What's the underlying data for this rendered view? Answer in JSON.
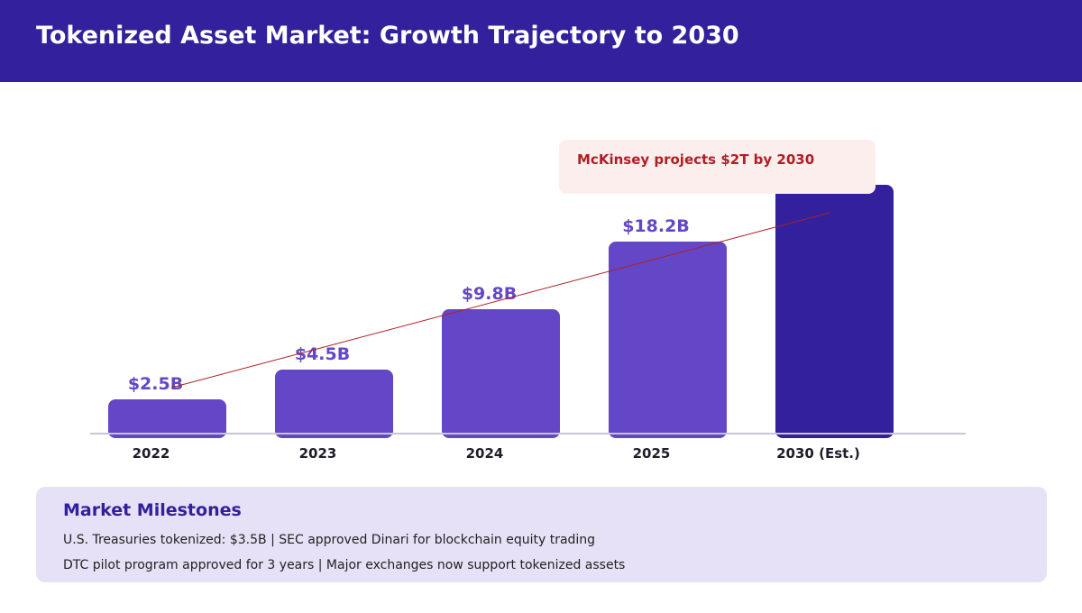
{
  "header": {
    "title": "Tokenized Asset Market: Growth Trajectory to 2030"
  },
  "chart_data": {
    "type": "bar",
    "categories": [
      "2022",
      "2023",
      "2024",
      "2025",
      "2030 (Est.)"
    ],
    "values": [
      2.5,
      4.5,
      9.8,
      18.2,
      null
    ],
    "data_labels": [
      "$2.5B",
      "$4.5B",
      "$9.8B",
      "$18.2B",
      ""
    ],
    "unit": "USD billions",
    "colors": [
      "#6447c6",
      "#6447c6",
      "#6447c6",
      "#6447c6",
      "#32209c"
    ],
    "trend_line_color": "#b01e23",
    "annotation": "McKinsey projects $2T by 2030",
    "grid": false
  },
  "milestones": {
    "title": "Market Milestones",
    "lines": [
      "U.S. Treasuries tokenized: $3.5B  |  SEC approved Dinari for blockchain equity trading",
      "DTC pilot program approved for 3 years  |  Major exchanges now support tokenized assets"
    ]
  }
}
